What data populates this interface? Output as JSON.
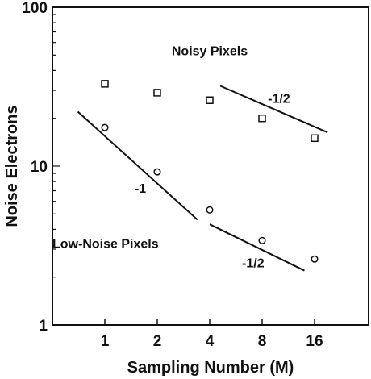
{
  "chart_data": {
    "type": "scatter",
    "xscale": "log2",
    "yscale": "log10",
    "xlim": [
      0.5,
      32
    ],
    "ylim": [
      1,
      100
    ],
    "xticks": [
      1,
      2,
      4,
      8,
      16
    ],
    "xtick_labels": [
      "1",
      "2",
      "4",
      "8",
      "16"
    ],
    "yticks": [
      1,
      10,
      100
    ],
    "ytick_labels": [
      "1",
      "10",
      "100"
    ],
    "xlabel": "Sampling Number (M)",
    "ylabel": "Noise Electrons",
    "series": [
      {
        "name": "Noisy Pixels",
        "marker": "square",
        "x": [
          1,
          2,
          4,
          8,
          16
        ],
        "y": [
          33,
          29,
          26,
          20,
          15
        ]
      },
      {
        "name": "Low-Noise Pixels",
        "marker": "circle",
        "x": [
          1,
          2,
          4,
          8,
          16
        ],
        "y": [
          17.5,
          9.2,
          5.3,
          3.4,
          2.6
        ]
      }
    ],
    "trend_lines": [
      {
        "label": "-1",
        "points": [
          [
            0.7,
            22
          ],
          [
            3.4,
            4.6
          ]
        ]
      },
      {
        "label": "-1/2",
        "points": [
          [
            4,
            4.3
          ],
          [
            14,
            2.2
          ]
        ]
      },
      {
        "label": "-1/2",
        "points": [
          [
            4.6,
            32
          ],
          [
            19,
            16.3
          ]
        ]
      }
    ],
    "annotations": [
      {
        "text": "Noisy Pixels",
        "x": 4,
        "y": 50
      },
      {
        "text": "-1/2",
        "x": 10,
        "y": 25
      },
      {
        "text": "-1",
        "x": 1.6,
        "y": 6.8
      },
      {
        "text": "Low-Noise Pixels",
        "x": 0.5,
        "y": 3.05
      },
      {
        "text": "-1/2",
        "x": 7.1,
        "y": 2.3
      }
    ]
  }
}
